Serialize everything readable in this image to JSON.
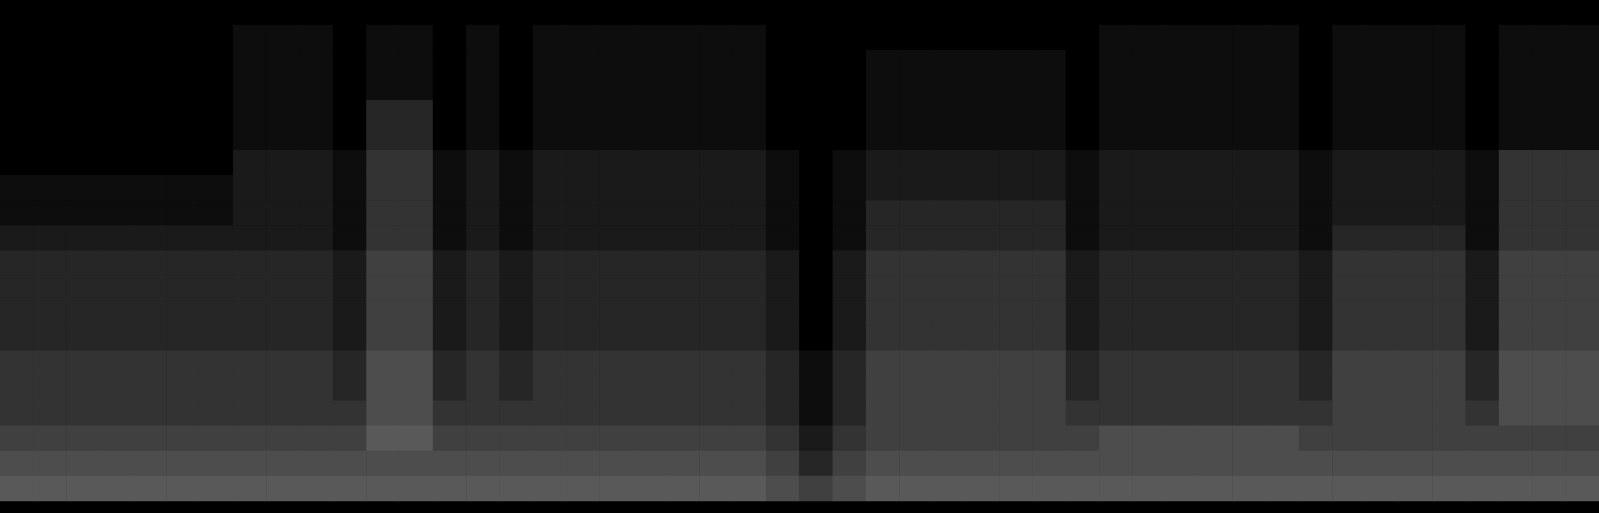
{
  "chart_data": {
    "type": "heatmap",
    "tick_labels": false,
    "zlim": [
      0,
      20
    ],
    "cells": [
      [
        0,
        0,
        0,
        0,
        0,
        0,
        0,
        0,
        0,
        0,
        0,
        0,
        0,
        0,
        0,
        0,
        0,
        0,
        0,
        0,
        0,
        0,
        0,
        0,
        0,
        0,
        0,
        0,
        0,
        0,
        0,
        0,
        0,
        0,
        0,
        0,
        0,
        0,
        0,
        0,
        0,
        0,
        0,
        0,
        0,
        0,
        0,
        0
      ],
      [
        0,
        0,
        0,
        0,
        0,
        0,
        0,
        1,
        1,
        1,
        0,
        1,
        1,
        0,
        1,
        0,
        1,
        1,
        1,
        1,
        1,
        1,
        1,
        0,
        0,
        0,
        0,
        0,
        0,
        0,
        0,
        0,
        0,
        1,
        1,
        1,
        1,
        1,
        1,
        0,
        1,
        1,
        1,
        1,
        0,
        1,
        1,
        1
      ],
      [
        0,
        0,
        0,
        0,
        0,
        0,
        0,
        1,
        1,
        1,
        0,
        1,
        1,
        0,
        1,
        0,
        1,
        1,
        1,
        1,
        1,
        1,
        1,
        0,
        0,
        0,
        1,
        1,
        1,
        1,
        1,
        1,
        0,
        1,
        1,
        1,
        1,
        1,
        1,
        0,
        1,
        1,
        1,
        1,
        0,
        1,
        1,
        1
      ],
      [
        0,
        0,
        0,
        0,
        0,
        0,
        0,
        1,
        1,
        1,
        0,
        1,
        1,
        0,
        1,
        0,
        1,
        1,
        1,
        1,
        1,
        1,
        1,
        0,
        0,
        0,
        1,
        1,
        1,
        1,
        1,
        1,
        0,
        1,
        1,
        1,
        1,
        1,
        1,
        0,
        1,
        1,
        1,
        1,
        0,
        1,
        1,
        1
      ],
      [
        0,
        0,
        0,
        0,
        0,
        0,
        0,
        1,
        1,
        1,
        0,
        3,
        3,
        0,
        1,
        0,
        1,
        1,
        1,
        1,
        1,
        1,
        1,
        0,
        0,
        0,
        1,
        1,
        1,
        1,
        1,
        1,
        0,
        1,
        1,
        1,
        1,
        1,
        1,
        0,
        1,
        1,
        1,
        1,
        0,
        1,
        1,
        1
      ],
      [
        0,
        0,
        0,
        0,
        0,
        0,
        0,
        1,
        1,
        1,
        0,
        3,
        3,
        0,
        1,
        0,
        1,
        1,
        1,
        1,
        1,
        1,
        1,
        0,
        0,
        0,
        1,
        1,
        1,
        1,
        1,
        1,
        0,
        1,
        1,
        1,
        1,
        1,
        1,
        0,
        1,
        1,
        1,
        1,
        0,
        1,
        1,
        1
      ],
      [
        0,
        0,
        0,
        0,
        0,
        0,
        0,
        2,
        2,
        2,
        1,
        4,
        4,
        1,
        2,
        1,
        2,
        2,
        2,
        2,
        2,
        2,
        2,
        1,
        0,
        1,
        2,
        2,
        2,
        2,
        2,
        2,
        1,
        2,
        2,
        2,
        2,
        2,
        2,
        1,
        2,
        2,
        2,
        2,
        1,
        4,
        4,
        4
      ],
      [
        1,
        1,
        1,
        1,
        1,
        1,
        1,
        2,
        2,
        2,
        1,
        4,
        4,
        1,
        2,
        1,
        2,
        2,
        2,
        2,
        2,
        2,
        2,
        1,
        0,
        1,
        2,
        2,
        2,
        2,
        2,
        2,
        1,
        2,
        2,
        2,
        2,
        2,
        2,
        1,
        2,
        2,
        2,
        2,
        1,
        4,
        4,
        4
      ],
      [
        1,
        1,
        1,
        1,
        1,
        1,
        1,
        2,
        2,
        2,
        1,
        4,
        4,
        1,
        2,
        1,
        2,
        2,
        2,
        2,
        2,
        2,
        2,
        1,
        0,
        1,
        3,
        3,
        3,
        3,
        3,
        3,
        1,
        2,
        2,
        2,
        2,
        2,
        2,
        1,
        2,
        2,
        2,
        2,
        1,
        4,
        4,
        4
      ],
      [
        2,
        2,
        2,
        2,
        2,
        2,
        2,
        2,
        2,
        2,
        1,
        4,
        4,
        1,
        2,
        1,
        2,
        2,
        2,
        2,
        2,
        2,
        2,
        1,
        0,
        1,
        3,
        3,
        3,
        3,
        3,
        3,
        1,
        2,
        2,
        2,
        2,
        2,
        2,
        1,
        3,
        3,
        3,
        3,
        1,
        4,
        4,
        4
      ],
      [
        3,
        3,
        3,
        3,
        3,
        3,
        3,
        3,
        3,
        3,
        2,
        5,
        5,
        2,
        3,
        2,
        3,
        3,
        3,
        3,
        3,
        3,
        3,
        2,
        0,
        2,
        4,
        4,
        4,
        4,
        4,
        4,
        2,
        3,
        3,
        3,
        3,
        3,
        3,
        2,
        4,
        4,
        4,
        4,
        2,
        5,
        5,
        5
      ],
      [
        3,
        3,
        3,
        3,
        3,
        3,
        3,
        3,
        3,
        3,
        2,
        5,
        5,
        2,
        3,
        2,
        3,
        3,
        3,
        3,
        3,
        3,
        3,
        2,
        0,
        2,
        4,
        4,
        4,
        4,
        4,
        4,
        2,
        3,
        3,
        3,
        3,
        3,
        3,
        2,
        4,
        4,
        4,
        4,
        2,
        5,
        5,
        5
      ],
      [
        3,
        3,
        3,
        3,
        3,
        3,
        3,
        3,
        3,
        3,
        2,
        5,
        5,
        2,
        3,
        2,
        3,
        3,
        3,
        3,
        3,
        3,
        3,
        2,
        0,
        2,
        4,
        4,
        4,
        4,
        4,
        4,
        2,
        3,
        3,
        3,
        3,
        3,
        3,
        2,
        4,
        4,
        4,
        4,
        2,
        5,
        5,
        5
      ],
      [
        3,
        3,
        3,
        3,
        3,
        3,
        3,
        3,
        3,
        3,
        2,
        5,
        5,
        2,
        3,
        2,
        3,
        3,
        3,
        3,
        3,
        3,
        3,
        2,
        0,
        2,
        4,
        4,
        4,
        4,
        4,
        4,
        2,
        3,
        3,
        3,
        3,
        3,
        3,
        2,
        4,
        4,
        4,
        4,
        2,
        5,
        5,
        5
      ],
      [
        4,
        4,
        4,
        4,
        4,
        4,
        4,
        4,
        4,
        4,
        3,
        6,
        6,
        3,
        4,
        3,
        4,
        4,
        4,
        4,
        4,
        4,
        4,
        3,
        1,
        3,
        5,
        5,
        5,
        5,
        5,
        5,
        3,
        4,
        4,
        4,
        4,
        4,
        4,
        3,
        5,
        5,
        5,
        5,
        3,
        6,
        6,
        6
      ],
      [
        4,
        4,
        4,
        4,
        4,
        4,
        4,
        4,
        4,
        4,
        3,
        6,
        6,
        3,
        4,
        3,
        4,
        4,
        4,
        4,
        4,
        4,
        4,
        3,
        1,
        3,
        5,
        5,
        5,
        5,
        5,
        5,
        3,
        4,
        4,
        4,
        4,
        4,
        4,
        3,
        5,
        5,
        5,
        5,
        3,
        6,
        6,
        6
      ],
      [
        4,
        4,
        4,
        4,
        4,
        4,
        4,
        4,
        4,
        4,
        4,
        6,
        6,
        4,
        4,
        4,
        4,
        4,
        4,
        4,
        4,
        4,
        4,
        3,
        1,
        3,
        5,
        5,
        5,
        5,
        5,
        5,
        4,
        4,
        4,
        4,
        4,
        4,
        4,
        4,
        5,
        5,
        5,
        5,
        4,
        6,
        6,
        6
      ],
      [
        5,
        5,
        5,
        5,
        5,
        5,
        5,
        5,
        5,
        5,
        5,
        7,
        7,
        5,
        5,
        5,
        5,
        5,
        5,
        5,
        5,
        5,
        5,
        4,
        2,
        4,
        5,
        5,
        5,
        5,
        5,
        5,
        5,
        6,
        6,
        6,
        6,
        6,
        6,
        5,
        5,
        5,
        5,
        5,
        5,
        5,
        5,
        5
      ],
      [
        6,
        6,
        6,
        6,
        6,
        6,
        6,
        6,
        6,
        6,
        6,
        6,
        6,
        6,
        6,
        6,
        6,
        6,
        6,
        6,
        6,
        6,
        6,
        5,
        3,
        5,
        6,
        6,
        6,
        6,
        6,
        6,
        6,
        6,
        6,
        6,
        6,
        6,
        6,
        6,
        6,
        6,
        6,
        6,
        6,
        6,
        6,
        6
      ],
      [
        7,
        7,
        7,
        7,
        7,
        7,
        7,
        7,
        7,
        7,
        7,
        7,
        7,
        7,
        7,
        7,
        7,
        7,
        7,
        7,
        7,
        7,
        7,
        6,
        5,
        6,
        7,
        7,
        7,
        7,
        7,
        7,
        7,
        7,
        7,
        7,
        7,
        7,
        7,
        7,
        7,
        7,
        7,
        7,
        7,
        7,
        7,
        7
      ]
    ]
  }
}
